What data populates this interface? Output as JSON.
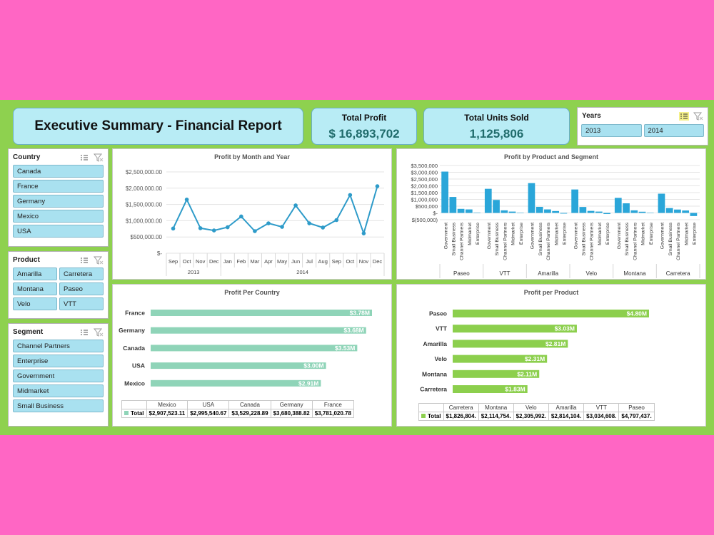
{
  "header": {
    "title": "Executive Summary - Financial Report"
  },
  "kpis": {
    "total_profit_label": "Total Profit",
    "total_profit_value": "$ 16,893,702",
    "units_label": "Total Units Sold",
    "units_value": "1,125,806"
  },
  "years_slicer": {
    "title": "Years",
    "items": [
      "2013",
      "2014"
    ]
  },
  "country_slicer": {
    "title": "Country",
    "items": [
      "Canada",
      "France",
      "Germany",
      "Mexico",
      "USA"
    ]
  },
  "product_slicer": {
    "title": "Product",
    "items": [
      "Amarilla",
      "Carretera",
      "Montana",
      "Paseo",
      "Velo",
      "VTT"
    ]
  },
  "segment_slicer": {
    "title": "Segment",
    "items": [
      "Channel Partners",
      "Enterprise",
      "Government",
      "Midmarket",
      "Small Business"
    ]
  },
  "colors": {
    "line": "#2e9bc9",
    "bar_blue": "#2aa6d9",
    "bar_teal": "#8fd4b8",
    "bar_green": "#8ccf4d"
  },
  "charts": {
    "month_year": {
      "title": "Profit by Month and Year",
      "type": "line",
      "yticks": [
        "$2,500,000.00",
        "$2,000,000.00",
        "$1,500,000.00",
        "$1,000,000.00",
        "$500,000.00",
        "$-"
      ],
      "ylim": [
        0,
        2500000
      ],
      "months": [
        "Sep",
        "Oct",
        "Nov",
        "Dec",
        "Jan",
        "Feb",
        "Mar",
        "Apr",
        "May",
        "Jun",
        "Jul",
        "Aug",
        "Sep",
        "Oct",
        "Nov",
        "Dec"
      ],
      "years": [
        {
          "label": "2013",
          "span": 4
        },
        {
          "label": "2014",
          "span": 12
        }
      ],
      "values": [
        760000,
        1650000,
        770000,
        700000,
        800000,
        1130000,
        680000,
        920000,
        810000,
        1470000,
        920000,
        790000,
        1020000,
        1790000,
        610000,
        2060000
      ]
    },
    "product_segment": {
      "title": "Profit by Product and Segment",
      "type": "bar",
      "yticks": [
        "$3,500,000",
        "$3,000,000",
        "$2,500,000",
        "$2,000,000",
        "$1,500,000",
        "$1,000,000",
        "$500,000",
        "$-",
        "$(500,000)"
      ],
      "ylim": [
        -500000,
        3500000
      ],
      "segments": [
        "Government",
        "Small Business",
        "Channel Partners",
        "Midmarket",
        "Enterprise"
      ],
      "products": [
        {
          "name": "Paseo",
          "values": [
            3050000,
            1180000,
            300000,
            260000,
            30000
          ]
        },
        {
          "name": "VTT",
          "values": [
            1780000,
            960000,
            190000,
            100000,
            10000
          ]
        },
        {
          "name": "Amarilla",
          "values": [
            2200000,
            450000,
            260000,
            140000,
            -50000
          ]
        },
        {
          "name": "Velo",
          "values": [
            1730000,
            440000,
            150000,
            100000,
            -80000
          ]
        },
        {
          "name": "Montana",
          "values": [
            1110000,
            710000,
            190000,
            90000,
            10000
          ]
        },
        {
          "name": "Carretera",
          "values": [
            1420000,
            360000,
            250000,
            180000,
            -230000
          ]
        }
      ]
    },
    "per_country": {
      "title": "Profit Per Country",
      "type": "bar",
      "categories": [
        "France",
        "Germany",
        "Canada",
        "USA",
        "Mexico"
      ],
      "values": [
        3781020.78,
        3680388.82,
        3529228.89,
        2995540.67,
        2907523.11
      ],
      "labels": [
        "$3.78M",
        "$3.68M",
        "$3.53M",
        "$3.00M",
        "$2.91M"
      ],
      "table_headers": [
        "Mexico",
        "USA",
        "Canada",
        "Germany",
        "France"
      ],
      "table_total_label": "Total",
      "table_values": [
        "$2,907,523.11",
        "$2,995,540.67",
        "$3,529,228.89",
        "$3,680,388.82",
        "$3,781,020.78"
      ]
    },
    "per_product": {
      "title": "Profit per Product",
      "type": "bar",
      "categories": [
        "Paseo",
        "VTT",
        "Amarilla",
        "Velo",
        "Montana",
        "Carretera"
      ],
      "values": [
        4797437,
        3034608,
        2814104,
        2305992,
        2114754,
        1826804
      ],
      "labels": [
        "$4.80M",
        "$3.03M",
        "$2.81M",
        "$2.31M",
        "$2.11M",
        "$1.83M"
      ],
      "table_headers": [
        "Carretera",
        "Montana",
        "Velo",
        "Amarilla",
        "VTT",
        "Paseo"
      ],
      "table_total_label": "Total",
      "table_values": [
        "$1,826,804.",
        "$2,114,754.",
        "$2,305,992.",
        "$2,814,104.",
        "$3,034,608.",
        "$4,797,437."
      ]
    }
  },
  "chart_data": [
    {
      "type": "line",
      "title": "Profit by Month and Year",
      "categories": [
        "Sep 2013",
        "Oct 2013",
        "Nov 2013",
        "Dec 2013",
        "Jan 2014",
        "Feb 2014",
        "Mar 2014",
        "Apr 2014",
        "May 2014",
        "Jun 2014",
        "Jul 2014",
        "Aug 2014",
        "Sep 2014",
        "Oct 2014",
        "Nov 2014",
        "Dec 2014"
      ],
      "values": [
        760000,
        1650000,
        770000,
        700000,
        800000,
        1130000,
        680000,
        920000,
        810000,
        1470000,
        920000,
        790000,
        1020000,
        1790000,
        610000,
        2060000
      ],
      "ylim": [
        0,
        2500000
      ]
    },
    {
      "type": "bar",
      "title": "Profit by Product and Segment",
      "categories": [
        "Paseo",
        "VTT",
        "Amarilla",
        "Velo",
        "Montana",
        "Carretera"
      ],
      "series": [
        {
          "name": "Government",
          "values": [
            3050000,
            1780000,
            2200000,
            1730000,
            1110000,
            1420000
          ]
        },
        {
          "name": "Small Business",
          "values": [
            1180000,
            960000,
            450000,
            440000,
            710000,
            360000
          ]
        },
        {
          "name": "Channel Partners",
          "values": [
            300000,
            190000,
            260000,
            150000,
            190000,
            250000
          ]
        },
        {
          "name": "Midmarket",
          "values": [
            260000,
            100000,
            140000,
            100000,
            90000,
            180000
          ]
        },
        {
          "name": "Enterprise",
          "values": [
            30000,
            10000,
            -50000,
            -80000,
            10000,
            -230000
          ]
        }
      ],
      "ylim": [
        -500000,
        3500000
      ]
    },
    {
      "type": "bar",
      "title": "Profit Per Country",
      "categories": [
        "France",
        "Germany",
        "Canada",
        "USA",
        "Mexico"
      ],
      "values": [
        3781020.78,
        3680388.82,
        3529228.89,
        2995540.67,
        2907523.11
      ]
    },
    {
      "type": "bar",
      "title": "Profit per Product",
      "categories": [
        "Paseo",
        "VTT",
        "Amarilla",
        "Velo",
        "Montana",
        "Carretera"
      ],
      "values": [
        4797437,
        3034608,
        2814104,
        2305992,
        2114754,
        1826804
      ]
    }
  ]
}
